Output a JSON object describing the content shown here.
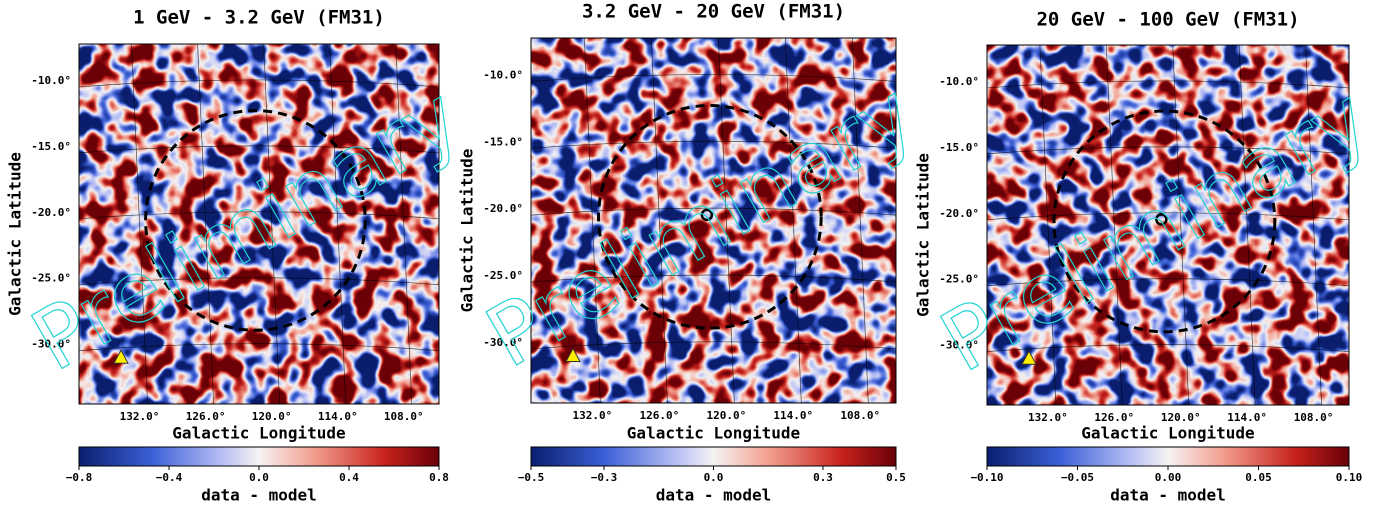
{
  "chart_data": [
    {
      "type": "map",
      "title": "1 GeV - 3.2 GeV (FM31)",
      "xlabel": "Galactic Longitude",
      "ylabel": "Galactic Latitude",
      "watermark": "Preliminary",
      "xlim": [
        137.5,
        104.8
      ],
      "ylim": [
        -34.5,
        -7.2
      ],
      "xticks": [
        {
          "value": 132,
          "label": "132.0°"
        },
        {
          "value": 126,
          "label": "126.0°"
        },
        {
          "value": 120,
          "label": "120.0°"
        },
        {
          "value": 114,
          "label": "114.0°"
        },
        {
          "value": 108,
          "label": "108.0°"
        }
      ],
      "yticks": [
        {
          "value": -10,
          "label": "-10.0°"
        },
        {
          "value": -15,
          "label": "-15.0°"
        },
        {
          "value": -20,
          "label": "-20.0°"
        },
        {
          "value": -25,
          "label": "-25.0°"
        },
        {
          "value": -30,
          "label": "-30.0°"
        }
      ],
      "colorbar": {
        "label": "data - model",
        "lim": [
          -0.8,
          0.8
        ],
        "ticks": [
          {
            "value": -0.8,
            "label": "−0.8"
          },
          {
            "value": -0.4,
            "label": "−0.4"
          },
          {
            "value": 0,
            "label": "0.0"
          },
          0.4,
          0.8
        ]
      }
    },
    {
      "type": "map",
      "title": "3.2 GeV - 20 GeV (FM31)",
      "xlabel": "Galactic Longitude",
      "ylabel": "Galactic Latitude",
      "watermark": "Preliminary",
      "xlim": [
        137.5,
        104.8
      ],
      "ylim": [
        -34.5,
        -7.2
      ],
      "xticks": [
        {
          "value": 132,
          "label": "132.0°"
        },
        {
          "value": 126,
          "label": "126.0°"
        },
        {
          "value": 120,
          "label": "120.0°"
        },
        {
          "value": 114,
          "label": "114.0°"
        },
        {
          "value": 108,
          "label": "108.0°"
        }
      ],
      "yticks": [
        {
          "value": -10,
          "label": "-10.0°"
        },
        {
          "value": -15,
          "label": "-15.0°"
        },
        {
          "value": -20,
          "label": "-20.0°"
        },
        {
          "value": -25,
          "label": "-25.0°"
        },
        {
          "value": -30,
          "label": "-30.0°"
        }
      ],
      "colorbar": {
        "label": "data - model",
        "lim": [
          -0.5,
          0.5
        ],
        "ticks": [
          {
            "value": -0.5,
            "label": "−0.5"
          },
          {
            "value": -0.3,
            "label": "−0.3"
          },
          {
            "value": 0,
            "label": "0.0"
          },
          0.3,
          0.5
        ]
      }
    },
    {
      "type": "map",
      "title": "20 GeV - 100 GeV (FM31)",
      "xlabel": "Galactic Longitude",
      "ylabel": "Galactic Latitude",
      "watermark": "Preliminary",
      "xlim": [
        137.5,
        104.8
      ],
      "ylim": [
        -34.5,
        -7.2
      ],
      "xticks": [
        {
          "value": 132,
          "label": "132.0°"
        },
        {
          "value": 126,
          "label": "126.0°"
        },
        {
          "value": 120,
          "label": "120.0°"
        },
        {
          "value": 114,
          "label": "114.0°"
        },
        {
          "value": 108,
          "label": "108.0°"
        }
      ],
      "yticks": [
        {
          "value": -10,
          "label": "-10.0°"
        },
        {
          "value": -15,
          "label": "-15.0°"
        },
        {
          "value": -20,
          "label": "-20.0°"
        },
        {
          "value": -25,
          "label": "-25.0°"
        },
        {
          "value": -30,
          "label": "-30.0°"
        }
      ],
      "colorbar": {
        "label": "data - model",
        "lim": [
          -0.1,
          0.1
        ],
        "ticks": [
          {
            "value": -0.1,
            "label": "−0.10"
          },
          {
            "value": -0.05,
            "label": "−0.05"
          },
          {
            "value": 0,
            "label": "0.00"
          },
          0.05,
          {
            "value": 0.1,
            "label": "0.10"
          }
        ]
      }
    }
  ]
}
